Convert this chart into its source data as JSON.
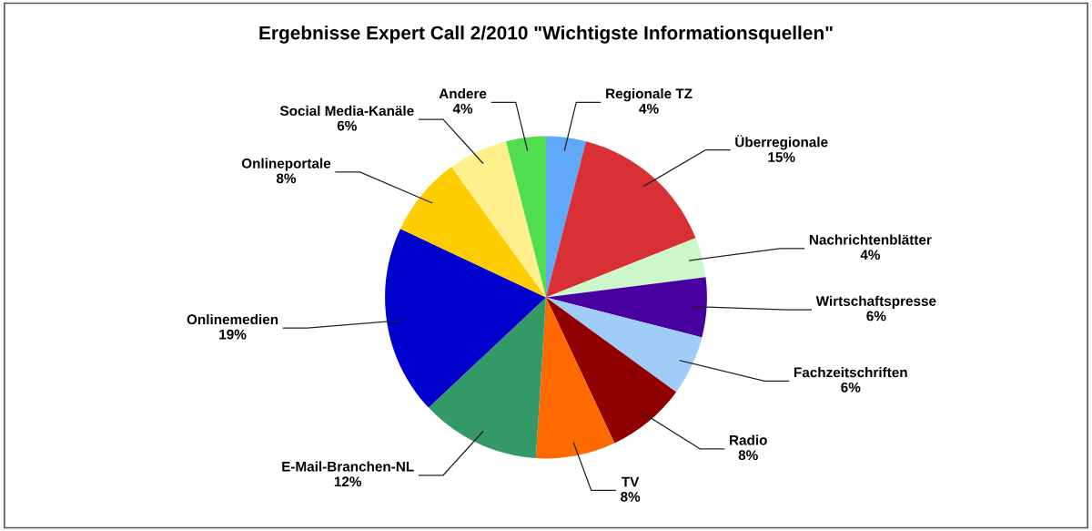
{
  "chart_data": {
    "type": "pie",
    "title": "Ergebnisse Expert Call 2/2010 \"Wichtigste Informationsquellen\"",
    "categories": [
      "Regionale TZ",
      "Überregionale",
      "Nachrichtenblätter",
      "Wirtschaftspresse",
      "Fachzeitschriften",
      "Radio",
      "TV",
      "E-Mail-Branchen-NL",
      "Onlinemedien",
      "Onlineportale",
      "Social Media-Kanäle",
      "Andere"
    ],
    "values": [
      4,
      15,
      4,
      6,
      6,
      8,
      8,
      12,
      19,
      8,
      6,
      4
    ],
    "value_labels": [
      "4%",
      "15%",
      "4%",
      "6%",
      "6%",
      "8%",
      "8%",
      "12%",
      "19%",
      "8%",
      "6%",
      "4%"
    ],
    "colors": [
      "#60a8f8",
      "#d93035",
      "#ccf8cc",
      "#4800a0",
      "#a0ccf8",
      "#900000",
      "#ff6a00",
      "#339966",
      "#0000cc",
      "#ffcc00",
      "#fff08c",
      "#50dd50"
    ],
    "legend": false
  }
}
